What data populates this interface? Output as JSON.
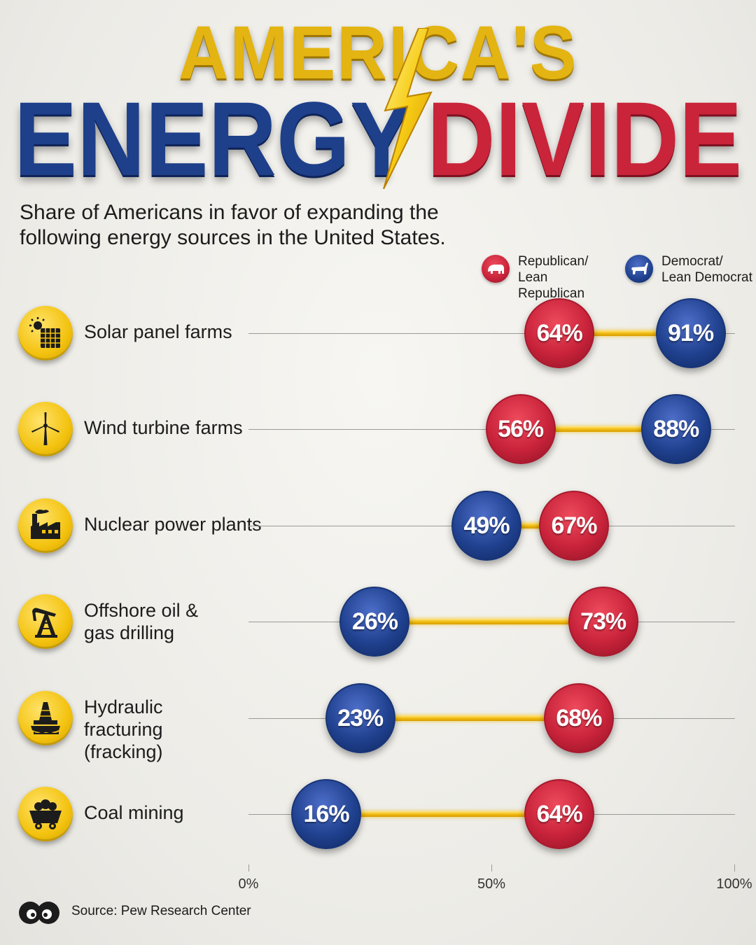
{
  "title": {
    "line1": "AMERICA'S",
    "energy": "ENERGY",
    "divide": "DIVIDE"
  },
  "subtitle": "Share of Americans in favor of expanding the following energy sources in the United States.",
  "legend": {
    "republican": "Republican/ Lean Republican",
    "democrat": "Democrat/ Lean Democrat"
  },
  "colors": {
    "republican": "#c8233a",
    "democrat": "#20418f",
    "gap": "#f1b90c"
  },
  "source": "Source: Pew Research Center",
  "chart_data": {
    "type": "dumbbell",
    "xlim": [
      0,
      100
    ],
    "x_ticks": [
      "0%",
      "50%",
      "100%"
    ],
    "series": [
      {
        "name": "Republican/ Lean Republican",
        "values": [
          64,
          56,
          67,
          73,
          68,
          64
        ]
      },
      {
        "name": "Democrat/ Lean Democrat",
        "values": [
          91,
          88,
          49,
          26,
          23,
          16
        ]
      }
    ],
    "categories": [
      {
        "label": "Solar panel farms",
        "icon": "solar-panel-icon",
        "rep": 64,
        "dem": 91,
        "rep_text": "64%",
        "dem_text": "91%"
      },
      {
        "label": "Wind turbine farms",
        "icon": "wind-turbine-icon",
        "rep": 56,
        "dem": 88,
        "rep_text": "56%",
        "dem_text": "88%"
      },
      {
        "label": "Nuclear power plants",
        "icon": "factory-icon",
        "rep": 67,
        "dem": 49,
        "rep_text": "67%",
        "dem_text": "49%"
      },
      {
        "label": "Offshore oil & gas drilling",
        "icon": "oil-pump-icon",
        "rep": 73,
        "dem": 26,
        "rep_text": "73%",
        "dem_text": "26%"
      },
      {
        "label": "Hydraulic fracturing (fracking)",
        "icon": "fracking-rig-icon",
        "rep": 68,
        "dem": 23,
        "rep_text": "68%",
        "dem_text": "23%"
      },
      {
        "label": "Coal mining",
        "icon": "coal-cart-icon",
        "rep": 64,
        "dem": 16,
        "rep_text": "64%",
        "dem_text": "16%"
      }
    ]
  }
}
